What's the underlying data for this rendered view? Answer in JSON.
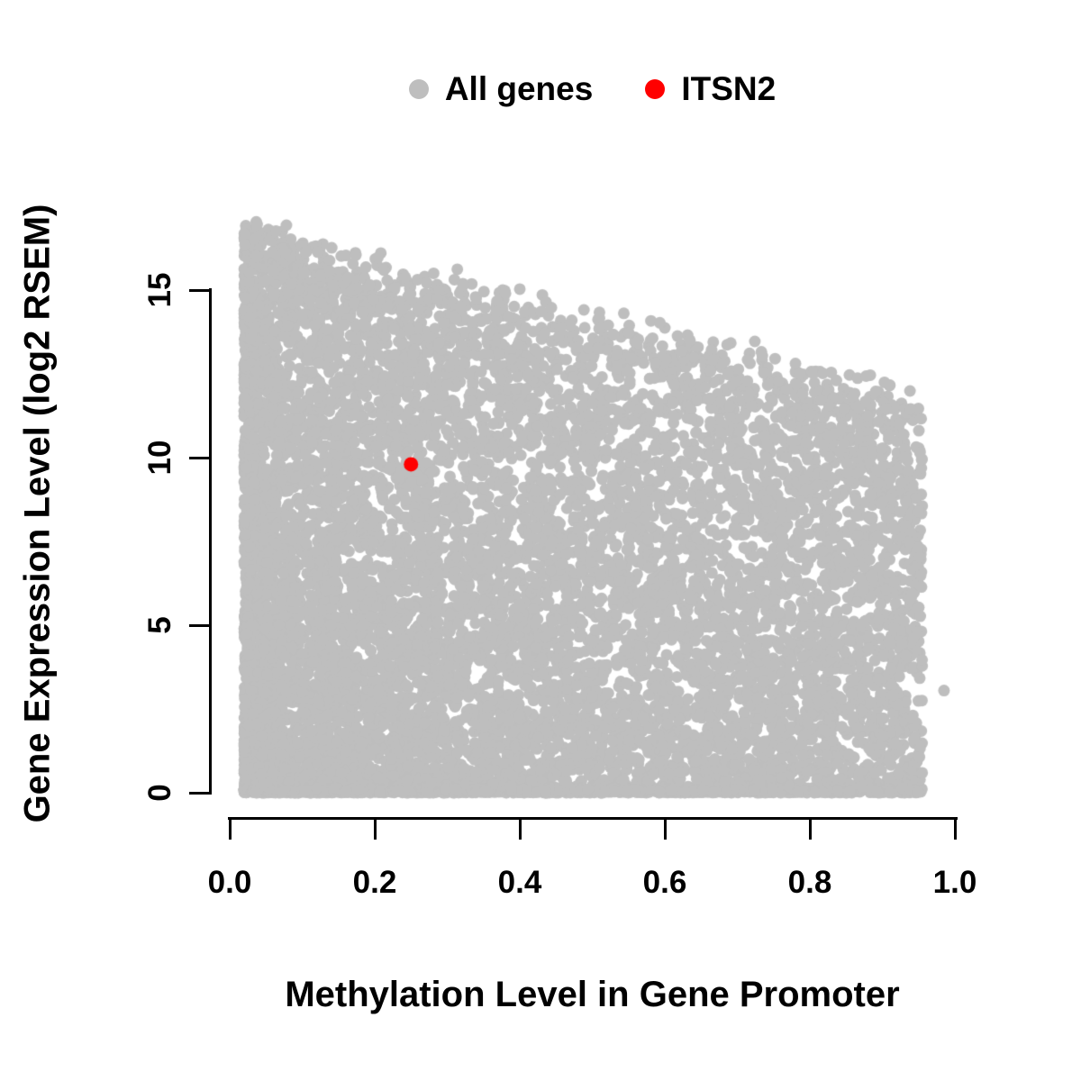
{
  "legend": {
    "items": [
      {
        "label": "All genes",
        "color": "#bebebe"
      },
      {
        "label": "ITSN2",
        "color": "#ff0000"
      }
    ]
  },
  "axes": {
    "x_label": "Methylation Level in Gene Promoter",
    "y_label": "Gene Expression Level (log2 RSEM)",
    "x_tick_labels": [
      "0.0",
      "0.2",
      "0.4",
      "0.6",
      "0.8",
      "1.0"
    ],
    "y_tick_labels": [
      "0",
      "5",
      "10",
      "15"
    ]
  },
  "chart_data": {
    "type": "scatter",
    "title": "",
    "xlabel": "Methylation Level in Gene Promoter",
    "ylabel": "Gene Expression Level (log2 RSEM)",
    "xlim": [
      0.0,
      1.0
    ],
    "ylim": [
      0,
      17
    ],
    "x_ticks": [
      0,
      0.2,
      0.4,
      0.6,
      0.8,
      1.0
    ],
    "y_ticks": [
      0,
      5,
      10,
      15
    ],
    "grid": false,
    "legend_position": "top-center",
    "series": [
      {
        "name": "All genes",
        "color": "#bebebe",
        "marker": "filled-circle",
        "point_count": 11000,
        "description": "Dense gray cloud spanning methylation 0.02-0.955; expression spans 0 to ~16.8 at low methylation with upper envelope declining to ~11.5-12 at high methylation; very dense band at expression 0 across full x range; density highest at low methylation.",
        "generation": {
          "seed": 20240117,
          "x_min": 0.02,
          "x_max": 0.955,
          "x_exponent": 1.5,
          "envelope_y_at_x0": 16.8,
          "envelope_y_at_x1": 11.5,
          "envelope_noise": 1.2,
          "y_exponent": 1.25,
          "bottom_band_fraction": 0.12,
          "bottom_band_max_y": 0.15
        },
        "isolated_points": [
          [
            0.985,
            3.05
          ]
        ]
      },
      {
        "name": "ITSN2",
        "color": "#ff0000",
        "marker": "filled-circle",
        "points": [
          [
            0.25,
            9.8
          ]
        ]
      }
    ]
  }
}
